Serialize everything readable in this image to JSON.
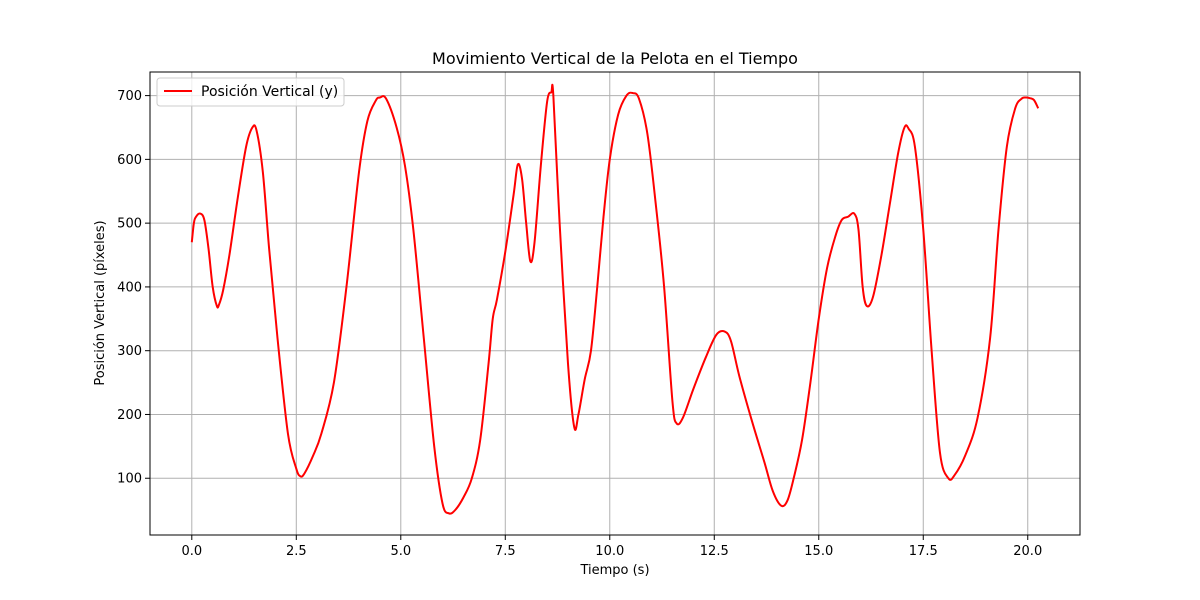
{
  "chart_data": {
    "type": "line",
    "title": "Movimiento Vertical de la Pelota en el Tiempo",
    "xlabel": "Tiempo (s)",
    "ylabel": "Posición Vertical (píxeles)",
    "xlim": [
      -1.0,
      21.25
    ],
    "ylim": [
      11,
      737
    ],
    "xticks": [
      0.0,
      2.5,
      5.0,
      7.5,
      10.0,
      12.5,
      15.0,
      17.5,
      20.0
    ],
    "xtick_labels": [
      "0.0",
      "2.5",
      "5.0",
      "7.5",
      "10.0",
      "12.5",
      "15.0",
      "17.5",
      "20.0"
    ],
    "yticks": [
      100,
      200,
      300,
      400,
      500,
      600,
      700
    ],
    "ytick_labels": [
      "100",
      "200",
      "300",
      "400",
      "500",
      "600",
      "700"
    ],
    "grid": true,
    "legend_position": "top-left",
    "series": [
      {
        "name": "Posición Vertical (y)",
        "color": "#ff0000",
        "x": [
          0.0,
          0.05,
          0.1,
          0.2,
          0.3,
          0.4,
          0.5,
          0.6,
          0.65,
          0.75,
          0.9,
          1.1,
          1.3,
          1.45,
          1.55,
          1.7,
          1.85,
          2.05,
          2.3,
          2.5,
          2.6,
          2.7,
          2.9,
          3.1,
          3.4,
          3.7,
          4.0,
          4.2,
          4.4,
          4.5,
          4.65,
          4.9,
          5.1,
          5.3,
          5.55,
          5.8,
          6.0,
          6.15,
          6.3,
          6.5,
          6.7,
          6.9,
          7.1,
          7.2,
          7.3,
          7.5,
          7.7,
          7.8,
          7.9,
          8.0,
          8.1,
          8.2,
          8.35,
          8.5,
          8.6,
          8.65,
          8.8,
          9.0,
          9.15,
          9.25,
          9.4,
          9.55,
          9.7,
          9.85,
          10.0,
          10.2,
          10.4,
          10.55,
          10.7,
          10.9,
          11.1,
          11.3,
          11.5,
          11.6,
          11.75,
          12.0,
          12.3,
          12.55,
          12.75,
          12.9,
          13.1,
          13.4,
          13.7,
          13.9,
          14.1,
          14.25,
          14.4,
          14.6,
          14.8,
          15.0,
          15.2,
          15.4,
          15.55,
          15.7,
          15.85,
          15.95,
          16.05,
          16.15,
          16.3,
          16.5,
          16.7,
          16.9,
          17.05,
          17.15,
          17.3,
          17.5,
          17.7,
          17.9,
          18.1,
          18.25,
          18.5,
          18.8,
          19.1,
          19.3,
          19.5,
          19.7,
          19.85,
          19.95,
          20.05,
          20.15,
          20.25
        ],
        "y": [
          470,
          500,
          510,
          515,
          505,
          460,
          400,
          370,
          372,
          395,
          450,
          540,
          620,
          650,
          645,
          580,
          460,
          320,
          170,
          115,
          103,
          108,
          135,
          170,
          250,
          400,
          580,
          660,
          692,
          697,
          695,
          650,
          590,
          490,
          320,
          150,
          60,
          45,
          50,
          70,
          100,
          160,
          280,
          350,
          380,
          455,
          545,
          592,
          570,
          500,
          440,
          470,
          590,
          690,
          705,
          700,
          500,
          280,
          180,
          200,
          255,
          300,
          400,
          510,
          600,
          670,
          700,
          704,
          695,
          640,
          530,
          400,
          220,
          186,
          195,
          240,
          290,
          325,
          330,
          315,
          260,
          190,
          125,
          80,
          57,
          65,
          100,
          160,
          250,
          350,
          430,
          480,
          505,
          510,
          515,
          490,
          400,
          370,
          385,
          450,
          530,
          610,
          650,
          648,
          620,
          490,
          300,
          140,
          100,
          105,
          135,
          195,
          320,
          490,
          620,
          680,
          695,
          697,
          696,
          693,
          680
        ]
      }
    ]
  }
}
